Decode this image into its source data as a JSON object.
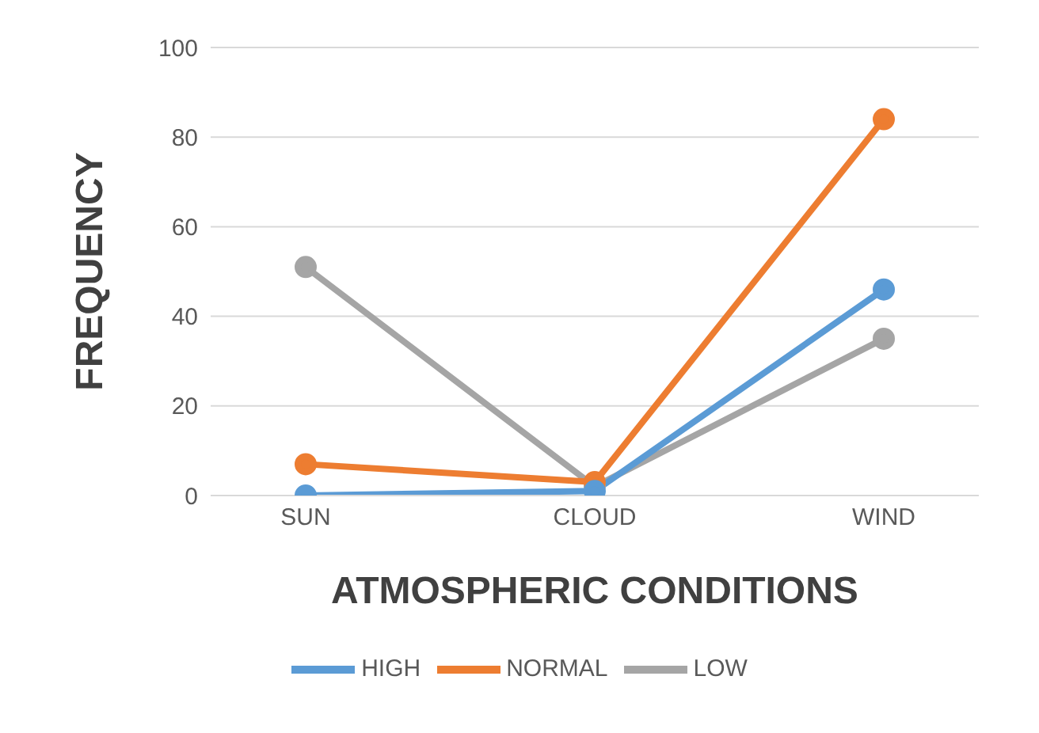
{
  "chart_data": {
    "type": "line",
    "xlabel": "ATMOSPHERIC CONDITIONS",
    "ylabel": "FREQUENCY",
    "categories": [
      "SUN",
      "CLOUD",
      "WIND"
    ],
    "series": [
      {
        "name": "HIGH",
        "color": "#5b9bd5",
        "values": [
          0,
          1,
          46
        ]
      },
      {
        "name": "NORMAL",
        "color": "#ed7d31",
        "values": [
          7,
          3,
          84
        ]
      },
      {
        "name": "LOW",
        "color": "#a5a5a5",
        "values": [
          51,
          2,
          35
        ]
      }
    ],
    "ylim": [
      0,
      100
    ],
    "yticks": [
      0,
      20,
      40,
      60,
      80,
      100
    ],
    "grid": "y",
    "legend": "bottom",
    "marker": "circle"
  }
}
